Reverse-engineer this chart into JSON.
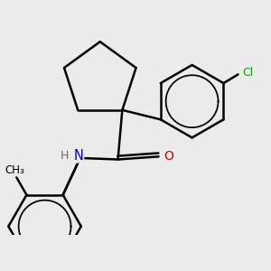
{
  "background_color": "#ebebeb",
  "atom_colors": {
    "C": "#000000",
    "N": "#0000cc",
    "O": "#cc0000",
    "Cl": "#00aa00",
    "H": "#666666"
  },
  "bond_color": "#000000",
  "bond_width": 1.8,
  "aromatic_inner_scale": 0.75,
  "figsize": [
    3.0,
    3.0
  ],
  "dpi": 100
}
